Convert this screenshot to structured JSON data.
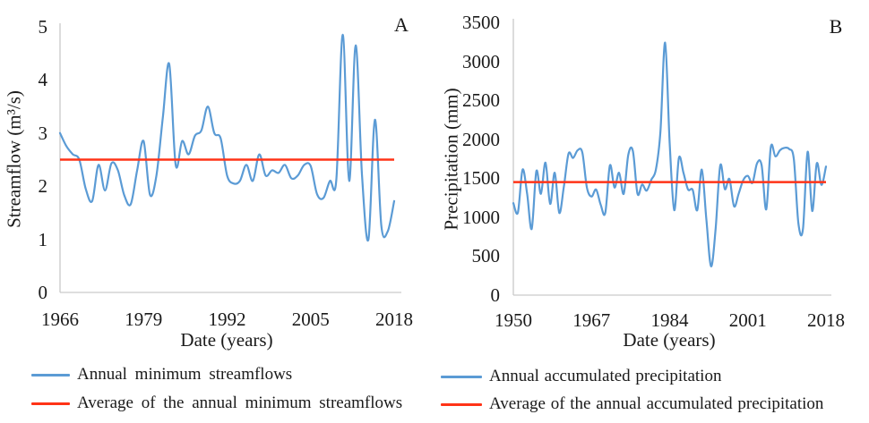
{
  "figure": {
    "text_color": "#1a1a1a",
    "axis_color": "#c9c9c9",
    "blue": "#5B9BD5",
    "red": "#FF3317"
  },
  "chart_data": [
    {
      "type": "line",
      "panel_label": "A",
      "xlabel": "Date (years)",
      "ylabel": "Streamflow (m³/s)",
      "ylim": [
        0,
        5
      ],
      "yticks": [
        0,
        1,
        2,
        3,
        4,
        5
      ],
      "xticks": [
        1966,
        1979,
        1992,
        2005,
        2018
      ],
      "grid": false,
      "legend_position": "below-left",
      "series": [
        {
          "name": "Annual minimum streamflows",
          "color": "#5B9BD5",
          "years": [
            1966,
            1967,
            1968,
            1969,
            1970,
            1971,
            1972,
            1973,
            1974,
            1975,
            1976,
            1977,
            1978,
            1979,
            1980,
            1981,
            1982,
            1983,
            1984,
            1985,
            1986,
            1987,
            1988,
            1989,
            1990,
            1991,
            1992,
            1993,
            1994,
            1995,
            1996,
            1997,
            1998,
            1999,
            2000,
            2001,
            2002,
            2003,
            2004,
            2005,
            2006,
            2007,
            2008,
            2009,
            2010,
            2011,
            2012,
            2013,
            2014,
            2015,
            2016,
            2017,
            2018
          ],
          "values": [
            3.0,
            2.75,
            2.6,
            2.5,
            1.95,
            1.72,
            2.4,
            1.92,
            2.43,
            2.3,
            1.83,
            1.66,
            2.3,
            2.85,
            1.84,
            2.2,
            3.3,
            4.3,
            2.4,
            2.85,
            2.6,
            2.95,
            3.05,
            3.5,
            3.0,
            2.9,
            2.2,
            2.05,
            2.1,
            2.4,
            2.1,
            2.6,
            2.2,
            2.3,
            2.25,
            2.4,
            2.15,
            2.2,
            2.4,
            2.38,
            1.85,
            1.78,
            2.1,
            2.12,
            4.85,
            2.1,
            4.65,
            2.2,
            1.0,
            3.25,
            1.25,
            1.15,
            1.72
          ]
        },
        {
          "name": "Average of the annual minimum streamflows",
          "color": "#FF3317",
          "type": "constant",
          "value": 2.5
        }
      ]
    },
    {
      "type": "line",
      "panel_label": "B",
      "xlabel": "Date (years)",
      "ylabel": "Precipitation (mm)",
      "ylim": [
        0,
        3500
      ],
      "yticks": [
        0,
        500,
        1000,
        1500,
        2000,
        2500,
        3000,
        3500
      ],
      "xticks": [
        1950,
        1967,
        1984,
        2001,
        2018
      ],
      "grid": false,
      "legend_position": "below-left",
      "series": [
        {
          "name": "Annual accumulated precipitation",
          "color": "#5B9BD5",
          "years": [
            1950,
            1951,
            1952,
            1953,
            1954,
            1955,
            1956,
            1957,
            1958,
            1959,
            1960,
            1961,
            1962,
            1963,
            1964,
            1965,
            1966,
            1967,
            1968,
            1969,
            1970,
            1971,
            1972,
            1973,
            1974,
            1975,
            1976,
            1977,
            1978,
            1979,
            1980,
            1981,
            1982,
            1983,
            1984,
            1985,
            1986,
            1987,
            1988,
            1989,
            1990,
            1991,
            1992,
            1993,
            1994,
            1995,
            1996,
            1997,
            1998,
            1999,
            2000,
            2001,
            2002,
            2003,
            2004,
            2005,
            2006,
            2007,
            2008,
            2009,
            2010,
            2011,
            2012,
            2013,
            2014,
            2015,
            2016,
            2017,
            2018
          ],
          "values": [
            1180,
            1060,
            1610,
            1300,
            850,
            1590,
            1300,
            1700,
            1170,
            1570,
            1055,
            1400,
            1815,
            1760,
            1860,
            1830,
            1380,
            1265,
            1355,
            1160,
            1055,
            1665,
            1380,
            1570,
            1300,
            1800,
            1850,
            1300,
            1420,
            1340,
            1480,
            1610,
            2100,
            3240,
            1950,
            1090,
            1760,
            1570,
            1355,
            1350,
            1090,
            1610,
            955,
            370,
            850,
            1665,
            1360,
            1490,
            1140,
            1300,
            1475,
            1530,
            1440,
            1690,
            1670,
            1100,
            1900,
            1780,
            1860,
            1890,
            1875,
            1745,
            920,
            850,
            1840,
            1080,
            1690,
            1415,
            1650
          ]
        },
        {
          "name": "Average of the annual accumulated precipitation",
          "color": "#FF3317",
          "type": "constant",
          "value": 1450
        }
      ]
    }
  ]
}
